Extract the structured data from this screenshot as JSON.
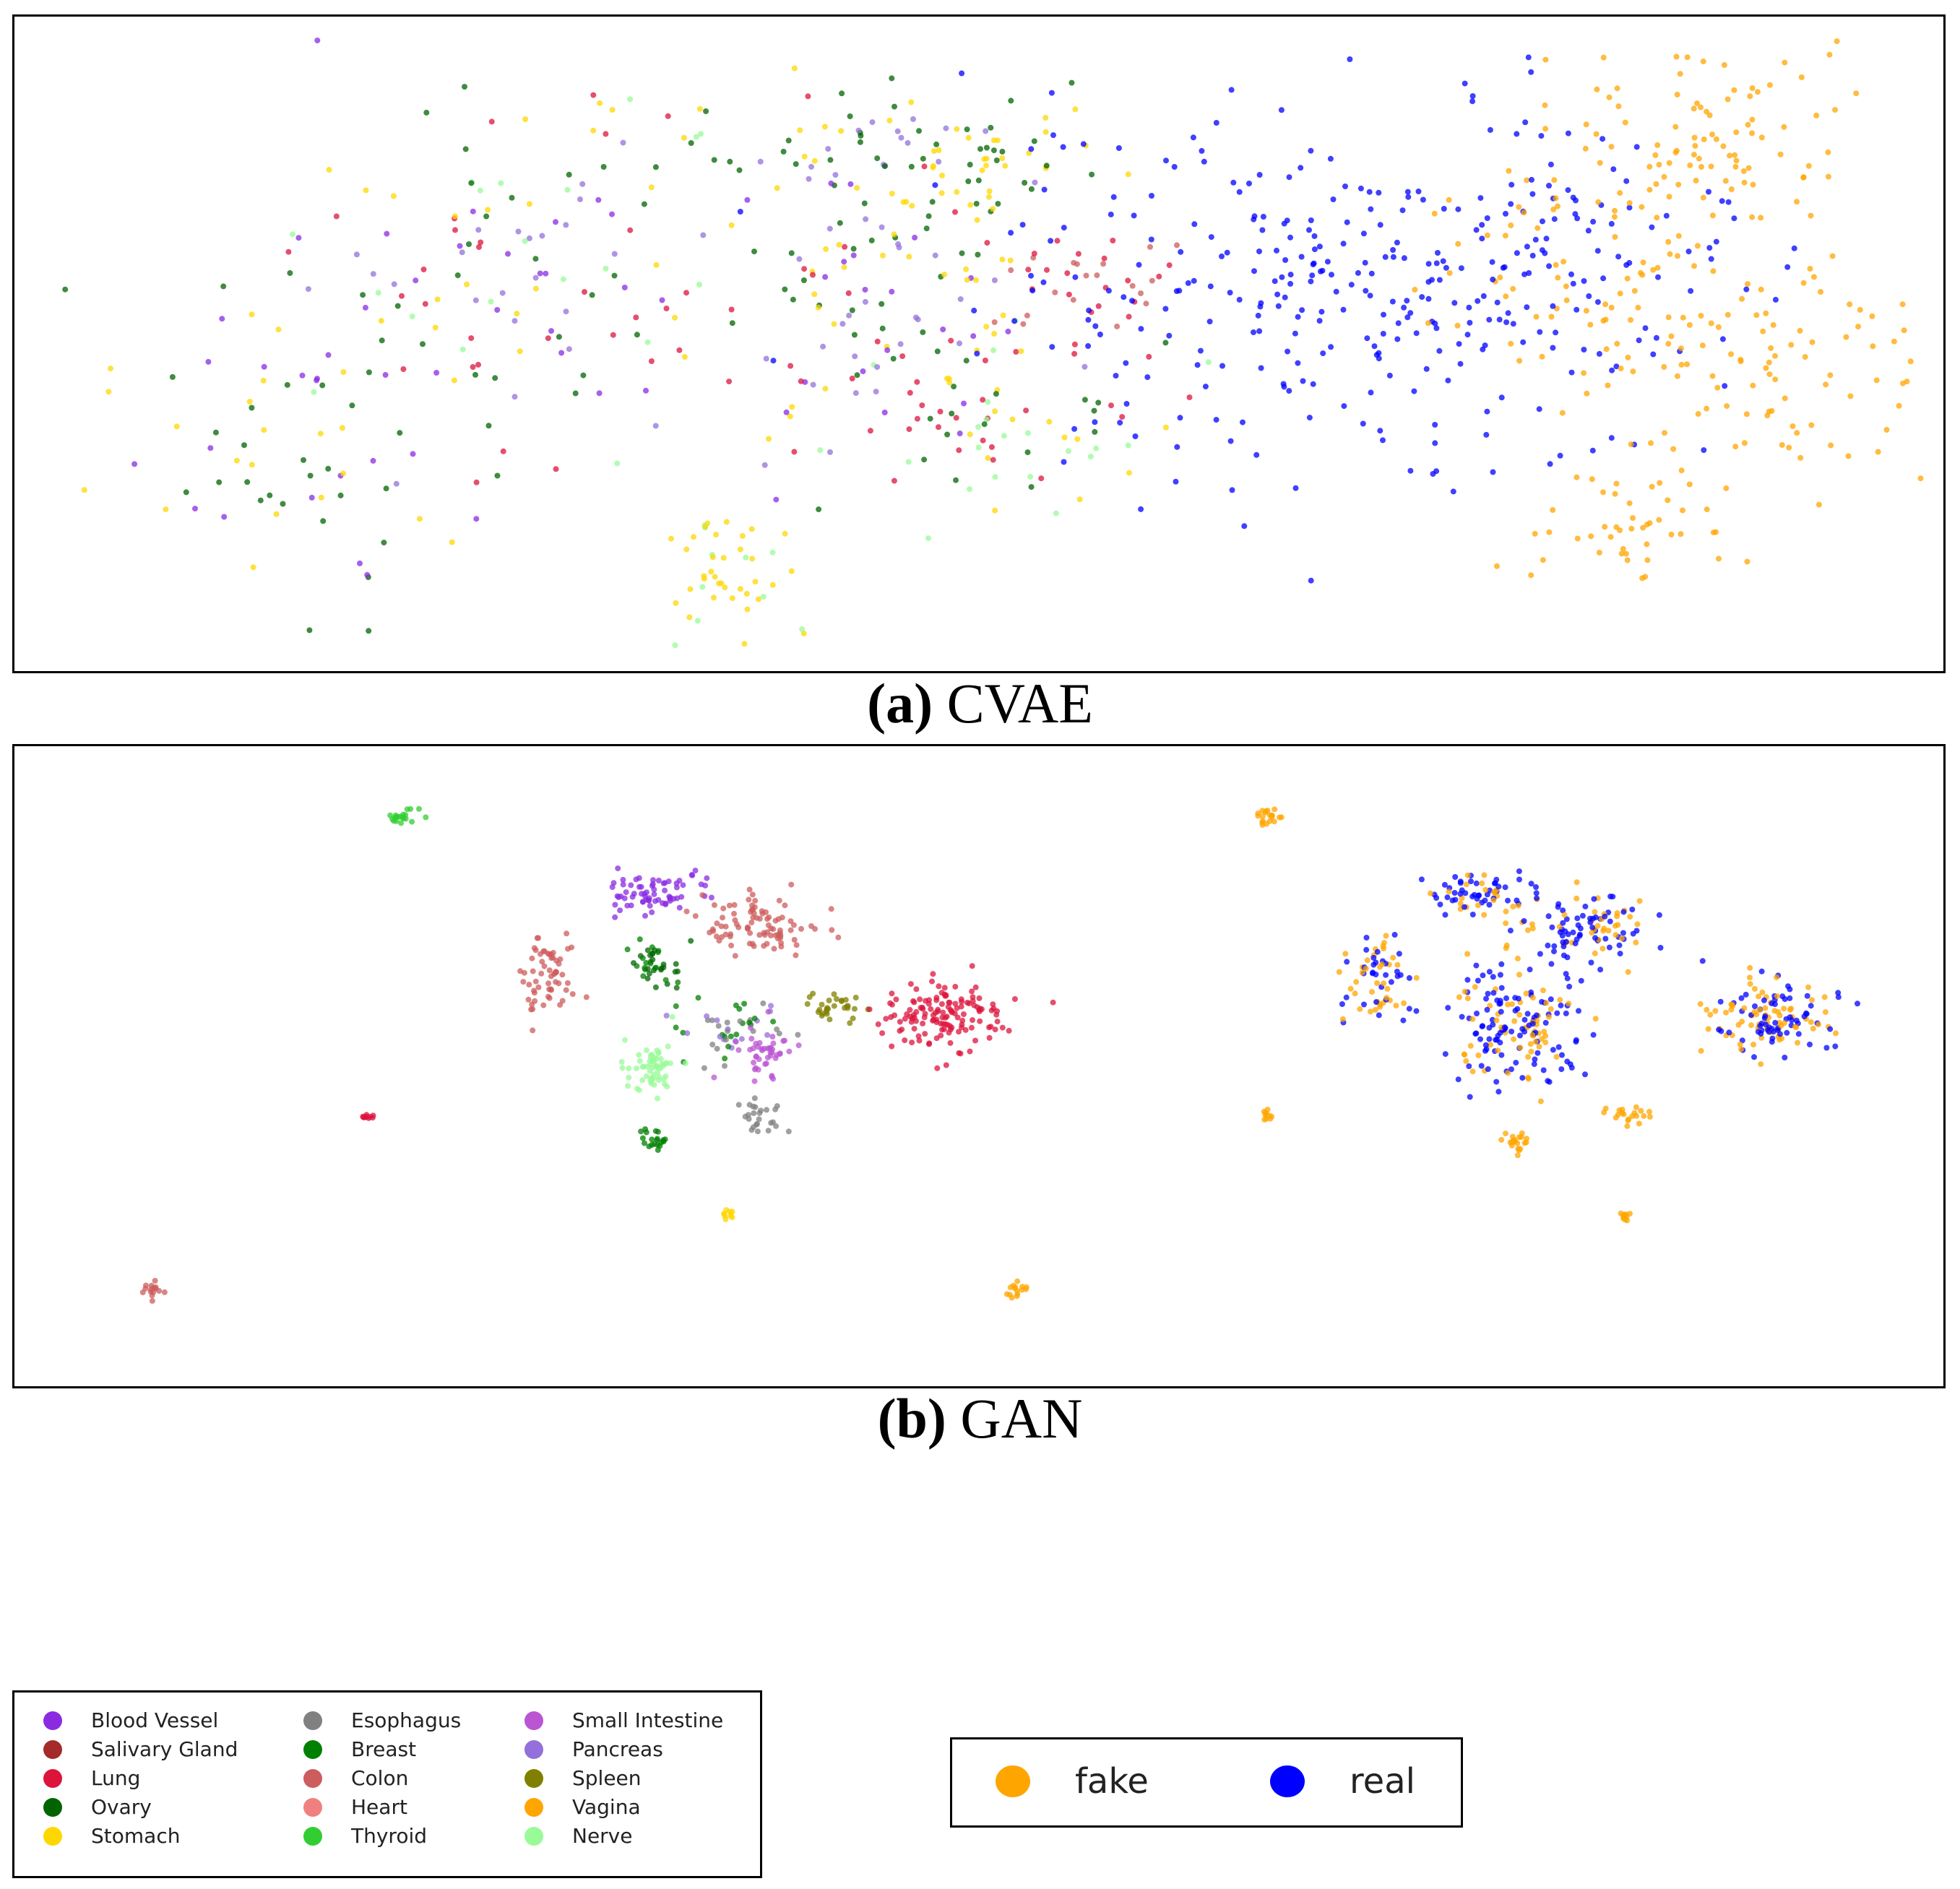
{
  "chart_data": [
    {
      "type": "scatter",
      "panel": "a",
      "title": "",
      "caption_label": "(a)",
      "caption_text": "CVAE",
      "subplots": [
        {
          "name": "by tissue",
          "colored_by": "tissue",
          "clusters": [
            {
              "cx": -0.4,
              "cy": 0.55,
              "rx": 0.35,
              "ry": 0.35,
              "n": 140,
              "mix": [
                "Ovary",
                "Stomach",
                "Lung",
                "Blood Vessel",
                "Nerve",
                "Pancreas"
              ]
            },
            {
              "cx": -0.7,
              "cy": 0.2,
              "rx": 0.25,
              "ry": 0.3,
              "n": 70,
              "mix": [
                "Ovary",
                "Stomach",
                "Blood Vessel"
              ]
            },
            {
              "cx": 0.05,
              "cy": 0.75,
              "rx": 0.3,
              "ry": 0.2,
              "n": 80,
              "mix": [
                "Ovary",
                "Ovary",
                "Stomach",
                "Pancreas"
              ]
            },
            {
              "cx": 0.1,
              "cy": 0.45,
              "rx": 0.25,
              "ry": 0.25,
              "n": 110,
              "mix": [
                "Pancreas",
                "Ovary",
                "Lung",
                "Stomach",
                "Blood Vessel"
              ]
            },
            {
              "cx": 0.25,
              "cy": 0.25,
              "rx": 0.25,
              "ry": 0.2,
              "n": 70,
              "mix": [
                "Lung",
                "Ovary",
                "Stomach",
                "Nerve"
              ]
            },
            {
              "cx": 0.4,
              "cy": 0.5,
              "rx": 0.15,
              "ry": 0.12,
              "n": 40,
              "mix": [
                "Colon",
                "Lung"
              ]
            },
            {
              "cx": 0.25,
              "cy": 0.75,
              "rx": 0.15,
              "ry": 0.12,
              "n": 40,
              "mix": [
                "Stomach",
                "Stomach",
                "Ovary"
              ]
            },
            {
              "cx": -0.1,
              "cy": -0.05,
              "rx": 0.1,
              "ry": 0.15,
              "n": 50,
              "mix": [
                "Stomach",
                "Stomach",
                "Nerve"
              ]
            }
          ]
        },
        {
          "name": "real vs fake",
          "colored_by": "source",
          "clusters": [
            {
              "cx": 0.75,
              "cy": 0.5,
              "rx": 0.5,
              "ry": 0.35,
              "n": 290,
              "mix": [
                "real"
              ]
            },
            {
              "cx": 1.1,
              "cy": 0.55,
              "rx": 0.3,
              "ry": 0.3,
              "n": 120,
              "mix": [
                "fake",
                "real"
              ]
            },
            {
              "cx": 1.25,
              "cy": 0.8,
              "rx": 0.2,
              "ry": 0.2,
              "n": 100,
              "mix": [
                "fake"
              ]
            },
            {
              "cx": 1.35,
              "cy": 0.35,
              "rx": 0.25,
              "ry": 0.2,
              "n": 90,
              "mix": [
                "fake"
              ]
            },
            {
              "cx": 1.15,
              "cy": 0.05,
              "rx": 0.12,
              "ry": 0.15,
              "n": 50,
              "mix": [
                "fake"
              ]
            }
          ]
        }
      ]
    },
    {
      "type": "scatter",
      "panel": "b",
      "title": "",
      "caption_label": "(b)",
      "caption_text": "GAN",
      "subplots": [
        {
          "name": "by tissue",
          "colored_by": "tissue",
          "clusters": [
            {
              "cx": -0.55,
              "cy": 0.9,
              "rx": 0.02,
              "ry": 0.02,
              "n": 20,
              "mix": [
                "Thyroid"
              ]
            },
            {
              "cx": -0.2,
              "cy": 0.75,
              "rx": 0.07,
              "ry": 0.05,
              "n": 70,
              "mix": [
                "Blood Vessel"
              ]
            },
            {
              "cx": -0.05,
              "cy": 0.68,
              "rx": 0.08,
              "ry": 0.06,
              "n": 90,
              "mix": [
                "Colon"
              ]
            },
            {
              "cx": -0.35,
              "cy": 0.58,
              "rx": 0.04,
              "ry": 0.1,
              "n": 60,
              "mix": [
                "Colon"
              ]
            },
            {
              "cx": -0.2,
              "cy": 0.6,
              "rx": 0.04,
              "ry": 0.06,
              "n": 40,
              "mix": [
                "Ovary",
                "Breast"
              ]
            },
            {
              "cx": -0.1,
              "cy": 0.48,
              "rx": 0.08,
              "ry": 0.06,
              "n": 50,
              "mix": [
                "Pancreas",
                "Esophagus",
                "Breast"
              ]
            },
            {
              "cx": 0.05,
              "cy": 0.52,
              "rx": 0.04,
              "ry": 0.03,
              "n": 30,
              "mix": [
                "Spleen"
              ]
            },
            {
              "cx": 0.2,
              "cy": 0.5,
              "rx": 0.08,
              "ry": 0.07,
              "n": 140,
              "mix": [
                "Lung"
              ]
            },
            {
              "cx": -0.2,
              "cy": 0.4,
              "rx": 0.04,
              "ry": 0.06,
              "n": 60,
              "mix": [
                "Nerve"
              ]
            },
            {
              "cx": -0.05,
              "cy": 0.42,
              "rx": 0.04,
              "ry": 0.05,
              "n": 45,
              "mix": [
                "Small Intestine"
              ]
            },
            {
              "cx": -0.05,
              "cy": 0.3,
              "rx": 0.03,
              "ry": 0.03,
              "n": 25,
              "mix": [
                "Esophagus"
              ]
            },
            {
              "cx": -0.2,
              "cy": 0.25,
              "rx": 0.02,
              "ry": 0.02,
              "n": 20,
              "mix": [
                "Breast"
              ]
            },
            {
              "cx": -0.6,
              "cy": 0.3,
              "rx": 0.01,
              "ry": 0.01,
              "n": 10,
              "mix": [
                "Lung"
              ]
            },
            {
              "cx": -0.1,
              "cy": 0.1,
              "rx": 0.01,
              "ry": 0.01,
              "n": 10,
              "mix": [
                "Stomach"
              ]
            },
            {
              "cx": -0.9,
              "cy": -0.05,
              "rx": 0.02,
              "ry": 0.02,
              "n": 15,
              "mix": [
                "Colon"
              ]
            },
            {
              "cx": 0.3,
              "cy": -0.05,
              "rx": 0.02,
              "ry": 0.02,
              "n": 15,
              "mix": [
                "Vagina"
              ]
            }
          ]
        },
        {
          "name": "real vs fake",
          "colored_by": "source",
          "clusters": [
            {
              "cx": 0.65,
              "cy": 0.9,
              "rx": 0.02,
              "ry": 0.02,
              "n": 20,
              "mix": [
                "fake"
              ]
            },
            {
              "cx": 0.95,
              "cy": 0.75,
              "rx": 0.07,
              "ry": 0.05,
              "n": 70,
              "mix": [
                "real",
                "real",
                "fake"
              ]
            },
            {
              "cx": 1.1,
              "cy": 0.68,
              "rx": 0.08,
              "ry": 0.07,
              "n": 100,
              "mix": [
                "real",
                "real",
                "fake"
              ]
            },
            {
              "cx": 0.8,
              "cy": 0.58,
              "rx": 0.05,
              "ry": 0.1,
              "n": 70,
              "mix": [
                "real",
                "fake"
              ]
            },
            {
              "cx": 1.0,
              "cy": 0.48,
              "rx": 0.1,
              "ry": 0.12,
              "n": 180,
              "mix": [
                "real",
                "real",
                "fake"
              ]
            },
            {
              "cx": 1.35,
              "cy": 0.5,
              "rx": 0.08,
              "ry": 0.07,
              "n": 140,
              "mix": [
                "real",
                "fake"
              ]
            },
            {
              "cx": 0.65,
              "cy": 0.3,
              "rx": 0.01,
              "ry": 0.01,
              "n": 10,
              "mix": [
                "fake"
              ]
            },
            {
              "cx": 1.0,
              "cy": 0.25,
              "rx": 0.02,
              "ry": 0.02,
              "n": 20,
              "mix": [
                "fake"
              ]
            },
            {
              "cx": 1.15,
              "cy": 0.3,
              "rx": 0.03,
              "ry": 0.02,
              "n": 20,
              "mix": [
                "fake"
              ]
            },
            {
              "cx": 1.15,
              "cy": 0.1,
              "rx": 0.01,
              "ry": 0.01,
              "n": 10,
              "mix": [
                "fake"
              ]
            }
          ]
        }
      ]
    }
  ],
  "tissue_legend": [
    {
      "label": "Blood Vessel",
      "color": "#8a2be2"
    },
    {
      "label": "Salivary Gland",
      "color": "#a52a2a"
    },
    {
      "label": "Lung",
      "color": "#dc143c"
    },
    {
      "label": "Ovary",
      "color": "#006400"
    },
    {
      "label": "Stomach",
      "color": "#ffd700"
    },
    {
      "label": "Esophagus",
      "color": "#808080"
    },
    {
      "label": "Breast",
      "color": "#008000"
    },
    {
      "label": "Colon",
      "color": "#cd5c5c"
    },
    {
      "label": "Heart",
      "color": "#f08080"
    },
    {
      "label": "Thyroid",
      "color": "#32cd32"
    },
    {
      "label": "Small Intestine",
      "color": "#ba55d3"
    },
    {
      "label": "Pancreas",
      "color": "#9370db"
    },
    {
      "label": "Spleen",
      "color": "#808000"
    },
    {
      "label": "Vagina",
      "color": "#ffa500"
    },
    {
      "label": "Nerve",
      "color": "#98fb98"
    }
  ],
  "source_legend": [
    {
      "label": "fake",
      "color": "#ffa500"
    },
    {
      "label": "real",
      "color": "#0000ff"
    }
  ]
}
